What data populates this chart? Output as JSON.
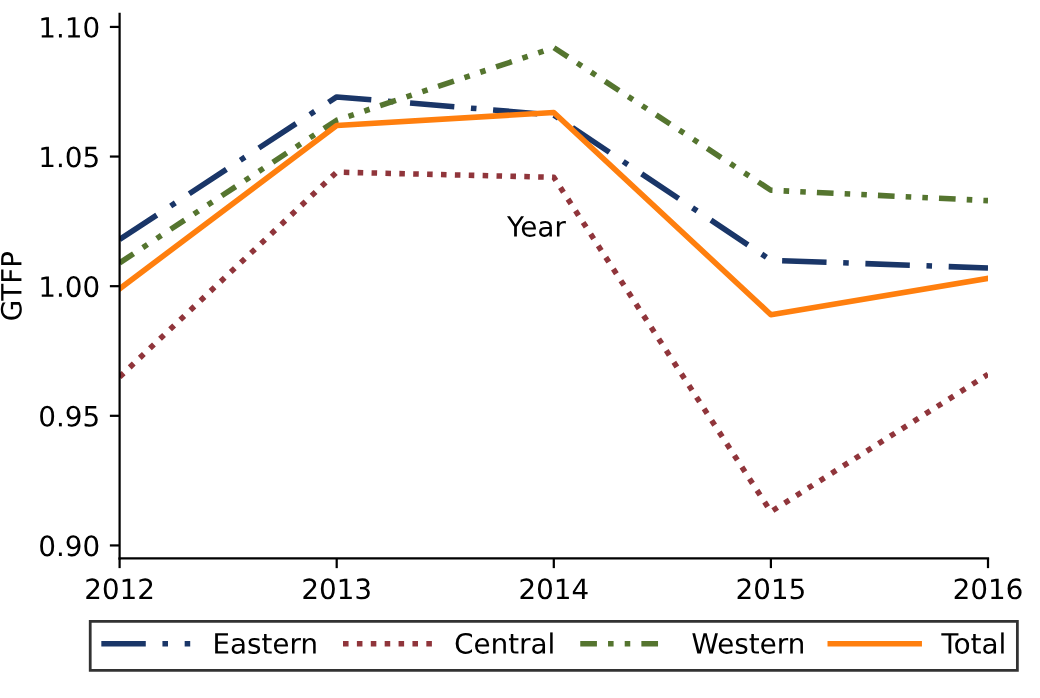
{
  "chart_data": {
    "type": "line",
    "xlabel": "Year",
    "ylabel": "GTFP",
    "x": [
      2012,
      2013,
      2014,
      2015,
      2016
    ],
    "xlim": [
      2012,
      2016
    ],
    "xticks": [
      2012,
      2013,
      2014,
      2015,
      2016
    ],
    "ylim": [
      0.895,
      1.105
    ],
    "yticks": [
      {
        "value": 0.9,
        "label": "0.90"
      },
      {
        "value": 0.95,
        "label": "0.95"
      },
      {
        "value": 1.0,
        "label": "1.00"
      },
      {
        "value": 1.05,
        "label": "1.05"
      },
      {
        "value": 1.1,
        "label": "1.10"
      }
    ],
    "grid": false,
    "legend": "bottom",
    "marker": "none",
    "series": [
      {
        "name": "Eastern",
        "color": "#1a3668",
        "line_style": "dashed",
        "values": [
          1.018,
          1.073,
          1.066,
          1.01,
          1.007
        ]
      },
      {
        "name": "Central",
        "color": "#90353b",
        "line_style": "dotted",
        "values": [
          0.965,
          1.044,
          1.042,
          0.913,
          0.966
        ]
      },
      {
        "name": "Western",
        "color": "#55752f",
        "line_style": "dotted",
        "values": [
          1.009,
          1.064,
          1.092,
          1.037,
          1.033
        ]
      },
      {
        "name": "Total",
        "color": "#ff7f0e",
        "line_style": "solid",
        "values": [
          0.999,
          1.062,
          1.067,
          0.989,
          1.003
        ]
      }
    ]
  }
}
